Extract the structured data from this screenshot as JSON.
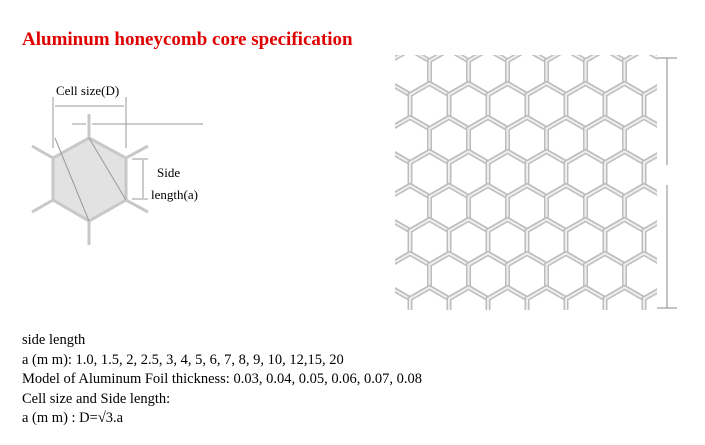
{
  "title": "Aluminum honeycomb core specification",
  "diagram": {
    "cell_size_label": "Cell size(D)",
    "side_label_1": "Side",
    "side_label_2": "length(a)"
  },
  "spec_lines": [
    "side length",
    "a (m m): 1.0, 1.5, 2, 2.5, 3, 4, 5, 6, 7, 8, 9, 10, 12,15, 20",
    "Model of Aluminum Foil thickness: 0.03, 0.04, 0.05, 0.06, 0.07, 0.08",
    "Cell size and Side length:",
    "a (m m) : D=√3.a"
  ],
  "colors": {
    "title": "#e00000",
    "hex_fill": "#e2e2e2",
    "hex_stroke": "#bdbdbd"
  }
}
